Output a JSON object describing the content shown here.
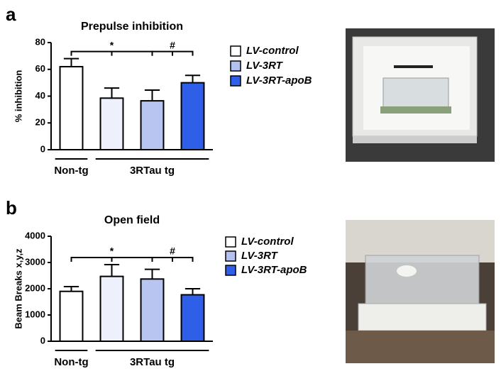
{
  "chart_data": [
    {
      "type": "bar",
      "panel": "a",
      "title": "Prepulse inhibition",
      "ylabel": "% inhibition",
      "categories": [
        null,
        null,
        null,
        null
      ],
      "values": [
        62,
        38.5,
        36.5,
        50
      ],
      "errors": [
        6,
        7.5,
        8,
        5.5
      ],
      "colors": [
        "#ffffff",
        "#eef0fb",
        "#b8c5f1",
        "#2f5fe8"
      ],
      "ylim": [
        0,
        80
      ],
      "yticks": [
        0,
        20,
        40,
        60,
        80
      ],
      "groups": [
        {
          "label": "Non-tg",
          "categories": [
            0
          ]
        },
        {
          "label": "3RTau tg",
          "categories": [
            1,
            2,
            3
          ]
        }
      ],
      "annotations": [
        {
          "text": "*",
          "from": 0,
          "to": 2
        },
        {
          "text": "#",
          "from": 2,
          "to": 3
        }
      ],
      "legend": [
        {
          "name": "LV-control",
          "color": "#ffffff"
        },
        {
          "name": "LV-3RT",
          "color": "#b3c1f1"
        },
        {
          "name": "LV-3RT-apoB",
          "color": "#2f5fe8"
        }
      ]
    },
    {
      "type": "bar",
      "panel": "b",
      "title": "Open field",
      "ylabel": "Beam Breaks x,y,z",
      "categories": [
        null,
        null,
        null,
        null
      ],
      "values": [
        1900,
        2470,
        2370,
        1770
      ],
      "errors": [
        180,
        450,
        370,
        230
      ],
      "colors": [
        "#ffffff",
        "#eef0fb",
        "#b8c5f1",
        "#2f5fe8"
      ],
      "ylim": [
        0,
        4000
      ],
      "yticks": [
        0,
        1000,
        2000,
        3000,
        4000
      ],
      "groups": [
        {
          "label": "Non-tg",
          "categories": [
            0
          ]
        },
        {
          "label": "3RTau tg",
          "categories": [
            1,
            2,
            3
          ]
        }
      ],
      "annotations": [
        {
          "text": "*",
          "from": 0,
          "to": 2
        },
        {
          "text": "#",
          "from": 2,
          "to": 3
        }
      ],
      "legend": [
        {
          "name": "LV-control",
          "color": "#ffffff"
        },
        {
          "name": "LV-3RT",
          "color": "#b3c1f1"
        },
        {
          "name": "LV-3RT-apoB",
          "color": "#2f5fe8"
        }
      ]
    }
  ]
}
